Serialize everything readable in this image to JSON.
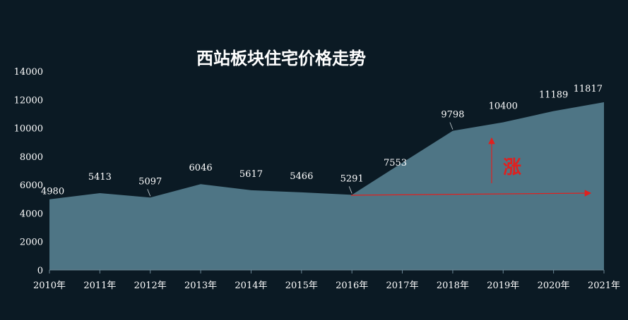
{
  "chart_data": {
    "type": "area",
    "title": "西站板块住宅价格走势",
    "categories": [
      "2010年",
      "2011年",
      "2012年",
      "2013年",
      "2014年",
      "2015年",
      "2016年",
      "2017年",
      "2018年",
      "2019年",
      "2020年",
      "2021年"
    ],
    "series": [
      {
        "values": [
          4980,
          5413,
          5097,
          6046,
          5617,
          5466,
          5291,
          7553,
          9798,
          10400,
          11189,
          11817
        ]
      }
    ],
    "ylim": [
      0,
      14000
    ],
    "yticks": [
      0,
      2000,
      4000,
      6000,
      8000,
      10000,
      12000,
      14000
    ],
    "grid": false,
    "legend": "none",
    "colors": {
      "background": "#0b1a24",
      "area": "#4e7585",
      "arrow": "#e0201e"
    },
    "annotation": {
      "text": "涨"
    }
  }
}
